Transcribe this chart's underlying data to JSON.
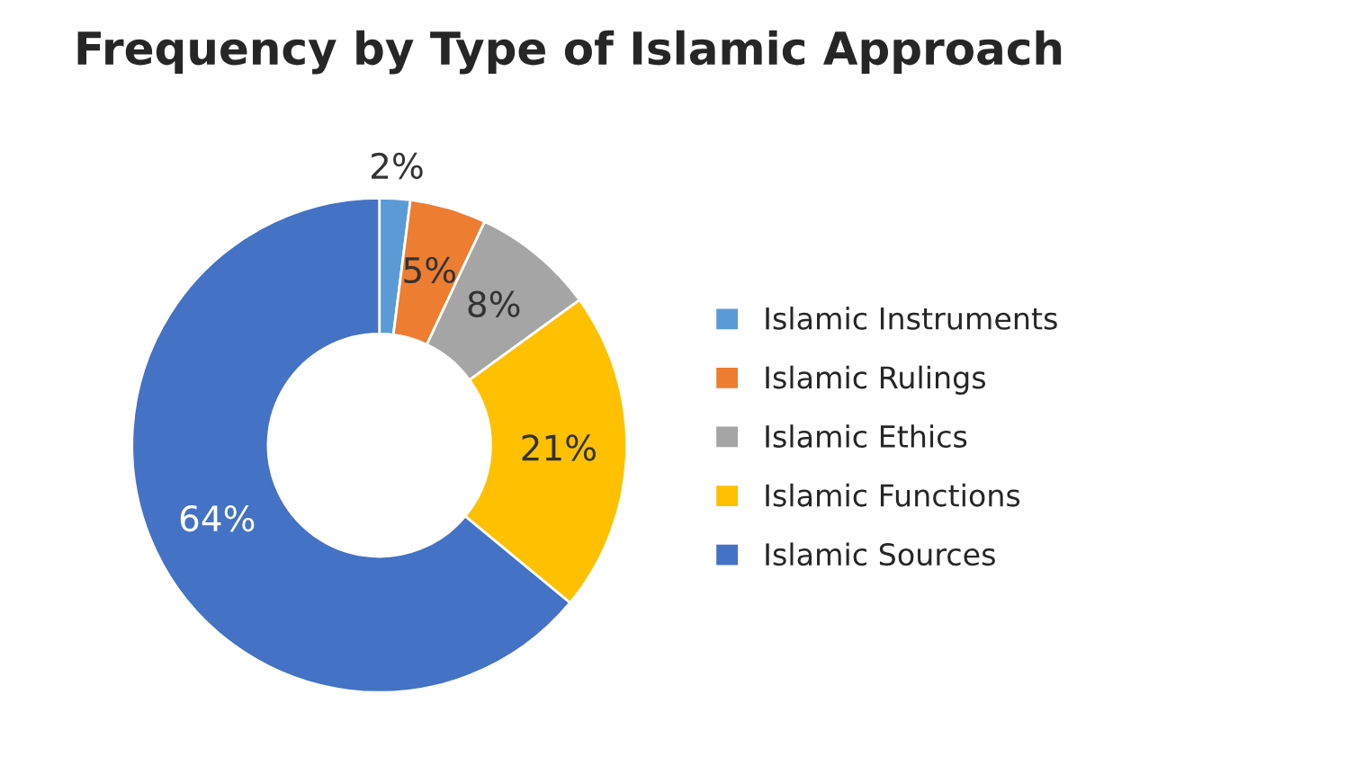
{
  "chart_data": {
    "type": "donut",
    "title": "Frequency by Type of Islamic Approach",
    "categories": [
      "Islamic Instruments",
      "Islamic Rulings",
      "Islamic Ethics",
      "Islamic Functions",
      "Islamic Sources"
    ],
    "values": [
      2,
      5,
      8,
      21,
      64
    ],
    "colors": [
      "#5b9bd5",
      "#ed7d31",
      "#a5a5a5",
      "#ffc000",
      "#4472c4"
    ],
    "value_labels": [
      "2%",
      "5%",
      "8%",
      "21%",
      "64%"
    ],
    "legend": "right"
  }
}
